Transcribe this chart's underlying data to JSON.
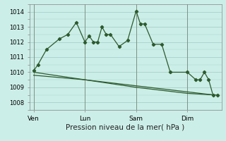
{
  "bg_color": "#cceee8",
  "grid_color": "#aad4ce",
  "line_color": "#2d5a2d",
  "title": "Pression niveau de la mer( hPa )",
  "ylabel_ticks": [
    1008,
    1009,
    1010,
    1011,
    1012,
    1013,
    1014
  ],
  "xlabels": [
    "Ven",
    "Lun",
    "Sam",
    "Dim"
  ],
  "xlabels_pos": [
    0,
    6,
    12,
    18
  ],
  "vlines": [
    0,
    6,
    12,
    18
  ],
  "series1_x": [
    0,
    0.5,
    1.5,
    3,
    4,
    5,
    6,
    6.5,
    7,
    7.5,
    8,
    8.5,
    9,
    10,
    11,
    12,
    12.5,
    13,
    14,
    15,
    16,
    18,
    19,
    19.5,
    20,
    20.5,
    21,
    21.5
  ],
  "series1_y": [
    1010.1,
    1010.5,
    1011.5,
    1012.2,
    1012.5,
    1013.3,
    1012.0,
    1012.4,
    1012.0,
    1012.0,
    1013.0,
    1012.5,
    1012.5,
    1011.7,
    1012.1,
    1014.05,
    1013.2,
    1013.2,
    1011.85,
    1011.85,
    1010.0,
    1010.0,
    1009.5,
    1009.5,
    1010.0,
    1009.5,
    1008.5,
    1008.5
  ],
  "series2_x": [
    0,
    6,
    12,
    18,
    21
  ],
  "series2_y": [
    1009.8,
    1009.5,
    1009.0,
    1008.6,
    1008.5
  ],
  "series3_x": [
    0,
    6,
    12,
    18,
    21
  ],
  "series3_y": [
    1010.0,
    1009.5,
    1009.1,
    1008.7,
    1008.5
  ],
  "xlim": [
    -0.5,
    22
  ],
  "ylim": [
    1007.5,
    1014.5
  ]
}
